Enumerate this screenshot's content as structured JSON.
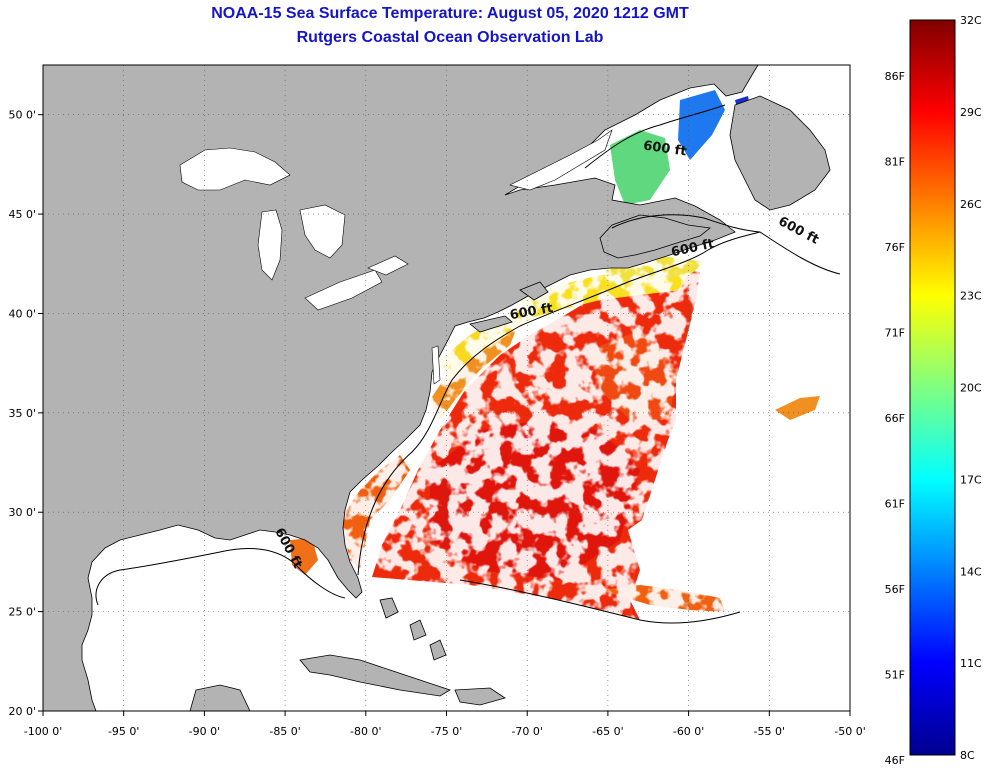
{
  "title": {
    "line1": "NOAA-15 Sea Surface Temperature:  August 05, 2020 1212 GMT",
    "line2": "Rutgers Coastal Ocean Observation Lab"
  },
  "map": {
    "lon_range": [
      -100,
      -50
    ],
    "lat_range": [
      20,
      52.5
    ],
    "x_ticks": [
      {
        "lon": -100,
        "label": "-100 0'"
      },
      {
        "lon": -95,
        "label": "-95 0'"
      },
      {
        "lon": -90,
        "label": "-90 0'"
      },
      {
        "lon": -85,
        "label": "-85 0'"
      },
      {
        "lon": -80,
        "label": "-80 0'"
      },
      {
        "lon": -75,
        "label": "-75 0'"
      },
      {
        "lon": -70,
        "label": "-70 0'"
      },
      {
        "lon": -65,
        "label": "-65 0'"
      },
      {
        "lon": -60,
        "label": "-60 0'"
      },
      {
        "lon": -55,
        "label": "-55 0'"
      },
      {
        "lon": -50,
        "label": "-50 0'"
      }
    ],
    "y_ticks": [
      {
        "lat": 50,
        "label": "50 0'"
      },
      {
        "lat": 45,
        "label": "45 0'"
      },
      {
        "lat": 40,
        "label": "40 0'"
      },
      {
        "lat": 35,
        "label": "35 0'"
      },
      {
        "lat": 30,
        "label": "30 0'"
      },
      {
        "lat": 25,
        "label": "25 0'"
      },
      {
        "lat": 20,
        "label": "20 0'"
      }
    ],
    "contour_label": "600 ft",
    "contour_labels": [
      {
        "lon": -61.5,
        "lat": 48.1,
        "angle": 8
      },
      {
        "lon": -53.3,
        "lat": 44.0,
        "angle": 28
      },
      {
        "lon": -59.7,
        "lat": 43.1,
        "angle": -12
      },
      {
        "lon": -69.7,
        "lat": 39.9,
        "angle": -10
      },
      {
        "lon": -85.0,
        "lat": 28.1,
        "angle": 62
      }
    ]
  },
  "colorbar": {
    "celsius_labels": [
      "32C",
      "29C",
      "26C",
      "23C",
      "20C",
      "17C",
      "14C",
      "11C",
      "8C"
    ],
    "fahrenheit_labels": [
      "86F",
      "81F",
      "76F",
      "71F",
      "66F",
      "61F",
      "56F",
      "51F",
      "46F"
    ],
    "colors": [
      "#00008f",
      "#0000ff",
      "#0080ff",
      "#00ffff",
      "#80ff80",
      "#ffff00",
      "#ff8000",
      "#ff0000",
      "#800000"
    ]
  }
}
